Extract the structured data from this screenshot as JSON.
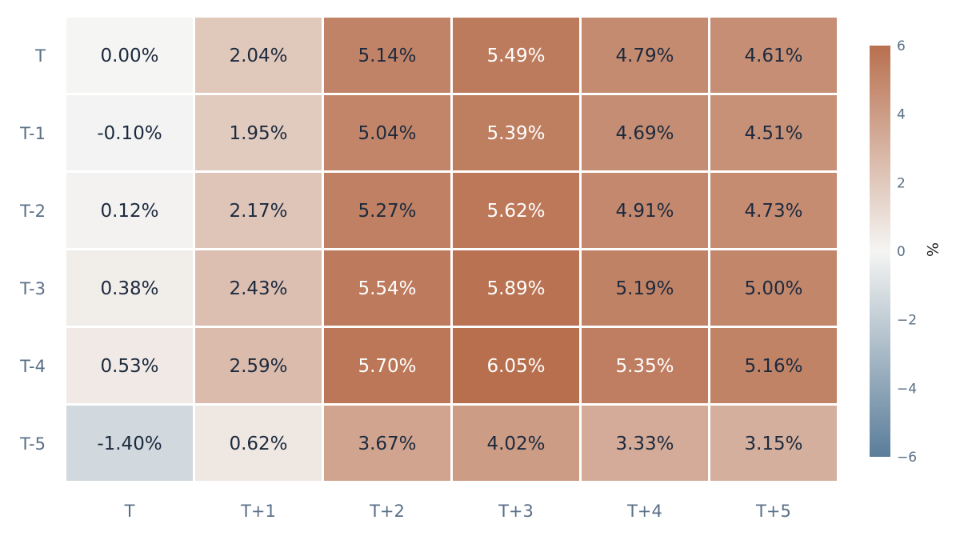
{
  "chart_data": {
    "type": "heatmap",
    "x_categories": [
      "T",
      "T+1",
      "T+2",
      "T+3",
      "T+4",
      "T+5"
    ],
    "y_categories": [
      "T",
      "T-1",
      "T-2",
      "T-3",
      "T-4",
      "T-5"
    ],
    "values": [
      [
        0.0,
        2.04,
        5.14,
        5.49,
        4.79,
        4.61
      ],
      [
        -0.1,
        1.95,
        5.04,
        5.39,
        4.69,
        4.51
      ],
      [
        0.12,
        2.17,
        5.27,
        5.62,
        4.91,
        4.73
      ],
      [
        0.38,
        2.43,
        5.54,
        5.89,
        5.19,
        5.0
      ],
      [
        0.53,
        2.59,
        5.7,
        6.05,
        5.35,
        5.16
      ],
      [
        -1.4,
        0.62,
        3.67,
        4.02,
        3.33,
        3.15
      ]
    ],
    "cell_labels": [
      [
        "0.00%",
        "2.04%",
        "5.14%",
        "5.49%",
        "4.79%",
        "4.61%"
      ],
      [
        "-0.10%",
        "1.95%",
        "5.04%",
        "5.39%",
        "4.69%",
        "4.51%"
      ],
      [
        "0.12%",
        "2.17%",
        "5.27%",
        "5.62%",
        "4.91%",
        "4.73%"
      ],
      [
        "0.38%",
        "2.43%",
        "5.54%",
        "5.89%",
        "5.19%",
        "5.00%"
      ],
      [
        "0.53%",
        "2.59%",
        "5.70%",
        "6.05%",
        "5.35%",
        "5.16%"
      ],
      [
        "-1.40%",
        "0.62%",
        "3.67%",
        "4.02%",
        "3.33%",
        "3.15%"
      ]
    ],
    "colorscale": {
      "range": [
        -6,
        6
      ],
      "ticks": [
        6,
        4,
        2,
        0,
        -2,
        -4,
        -6
      ],
      "tick_labels": [
        "6",
        "4",
        "2",
        "0",
        "−2",
        "−4",
        "−6"
      ],
      "title": "%",
      "colors": {
        "low": "#5a7d9a",
        "mid": "#f5f5f3",
        "high": "#b8704f"
      }
    },
    "colors": {
      "axis_label": "#5a6f86",
      "text_dark": "#1c2a3e",
      "text_light": "#ffffff",
      "grid_gap": "#ffffff"
    }
  }
}
